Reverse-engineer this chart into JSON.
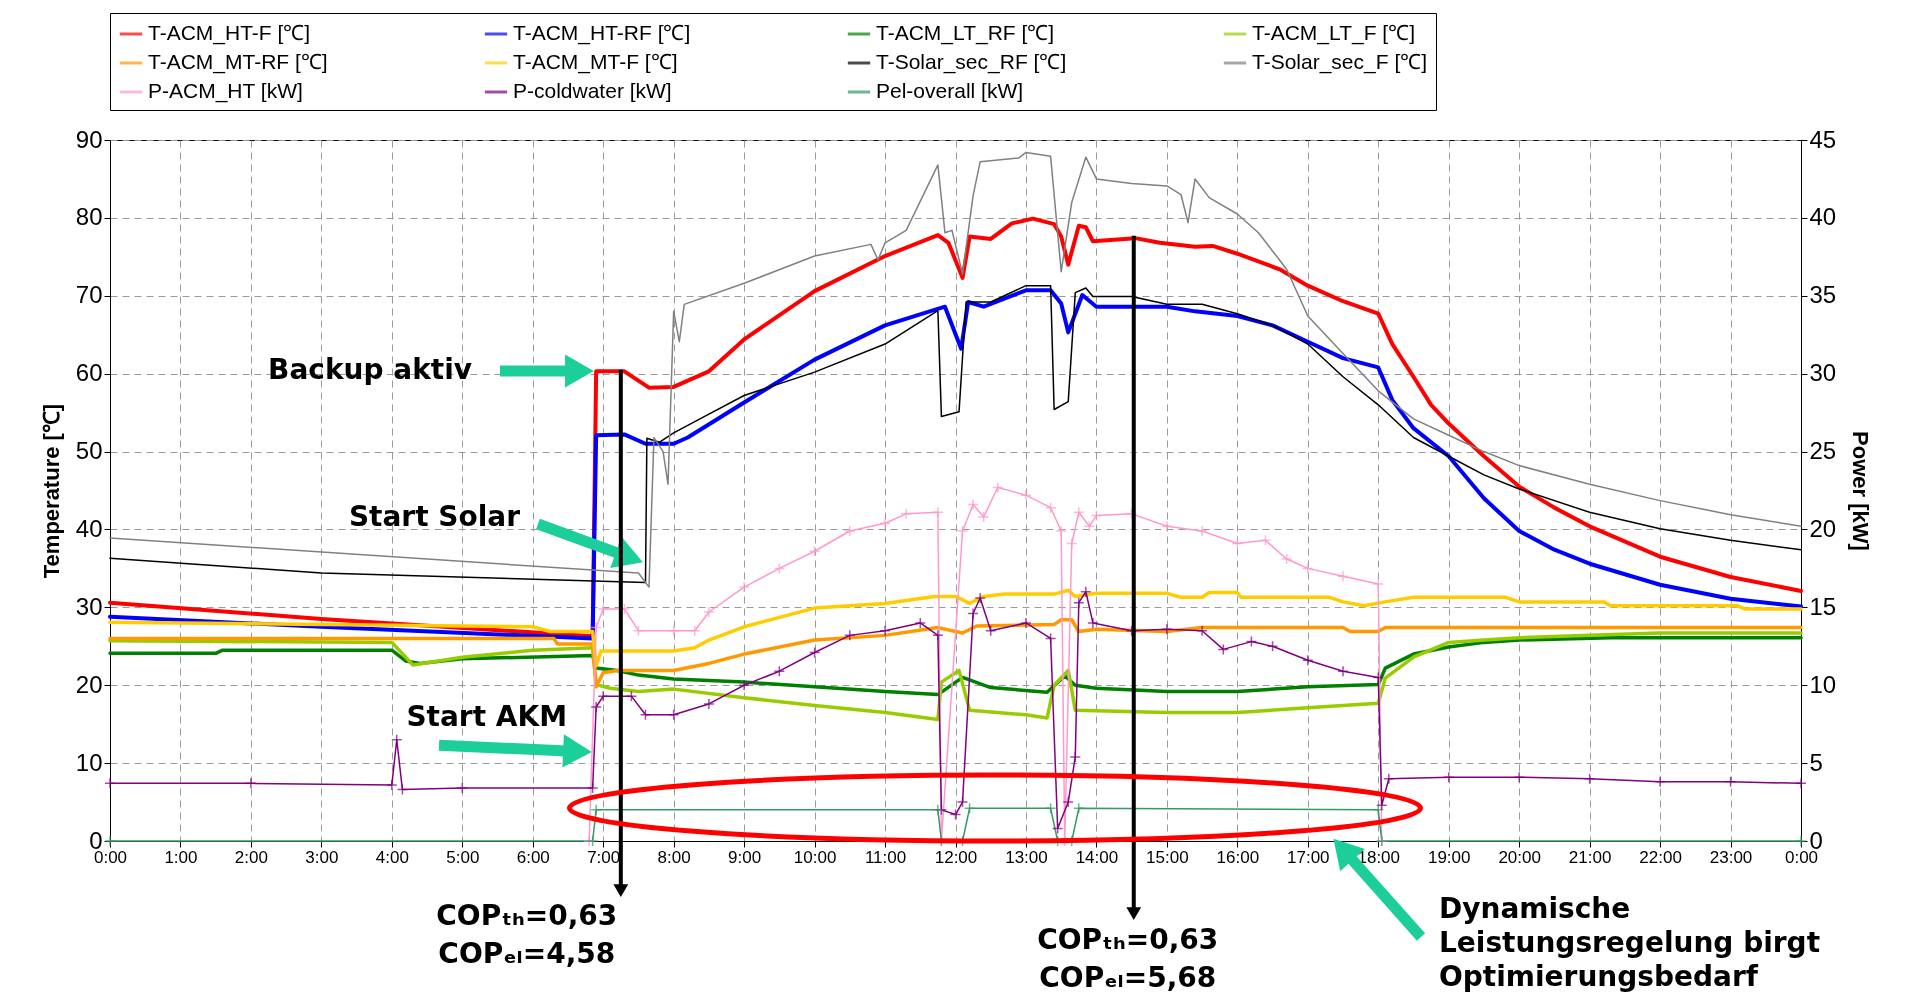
{
  "chart_data": {
    "type": "line",
    "ylabel": "Temperature [℃]",
    "y2label": "Power [kW]",
    "xlim": [
      0,
      24
    ],
    "xticks": [
      {
        "value": 0,
        "label": "0:00"
      },
      {
        "value": 1,
        "label": "1:00"
      },
      {
        "value": 2,
        "label": "2:00"
      },
      {
        "value": 3,
        "label": "3:00"
      },
      {
        "value": 4,
        "label": "4:00"
      },
      {
        "value": 5,
        "label": "5:00"
      },
      {
        "value": 6,
        "label": "6:00"
      },
      {
        "value": 7,
        "label": "7:00"
      },
      {
        "value": 8,
        "label": "8:00"
      },
      {
        "value": 9,
        "label": "9:00"
      },
      {
        "value": 10,
        "label": "10:00"
      },
      {
        "value": 11,
        "label": "11:00"
      },
      {
        "value": 12,
        "label": "12:00"
      },
      {
        "value": 13,
        "label": "13:00"
      },
      {
        "value": 14,
        "label": "14:00"
      },
      {
        "value": 15,
        "label": "15:00"
      },
      {
        "value": 16,
        "label": "16:00"
      },
      {
        "value": 17,
        "label": "17:00"
      },
      {
        "value": 18,
        "label": "18:00"
      },
      {
        "value": 19,
        "label": "19:00"
      },
      {
        "value": 20,
        "label": "20:00"
      },
      {
        "value": 21,
        "label": "21:00"
      },
      {
        "value": 22,
        "label": "22:00"
      },
      {
        "value": 23,
        "label": "23:00"
      },
      {
        "value": 24,
        "label": "0:00"
      }
    ],
    "ylim": [
      0,
      90
    ],
    "yticks": [
      0,
      10,
      20,
      30,
      40,
      50,
      60,
      70,
      80,
      90
    ],
    "y2lim": [
      0,
      45
    ],
    "y2ticks": [
      0,
      5,
      10,
      15,
      20,
      25,
      30,
      35,
      40,
      45
    ],
    "grid": true,
    "legend": "top",
    "series": [
      {
        "name": "T-ACM_HT-F [℃]",
        "color": "#ff0000",
        "x": [
          0,
          3,
          6.85,
          6.9,
          7.3,
          7.65,
          8,
          8.5,
          9,
          10,
          11,
          11.75,
          11.9,
          12.1,
          12.2,
          12.5,
          12.8,
          13.1,
          13.4,
          13.5,
          13.6,
          13.75,
          13.85,
          13.95,
          14.55,
          14.9,
          15.4,
          15.65,
          16,
          16.6,
          17,
          17.5,
          18,
          18.2,
          18.5,
          18.75,
          19,
          19.5,
          20,
          20.5,
          21,
          22,
          23,
          24
        ],
        "values": [
          30.6,
          28.5,
          26.3,
          60.3,
          60.3,
          58.2,
          58.3,
          60.3,
          64.4,
          70.6,
          75.1,
          77.8,
          76.8,
          72.3,
          77.6,
          77.3,
          79.3,
          79.9,
          79.2,
          77.6,
          74.0,
          79.0,
          78.8,
          77.0,
          77.4,
          76.8,
          76.3,
          76.4,
          75.4,
          73.4,
          71.3,
          69.3,
          67.7,
          63.8,
          59.6,
          56.0,
          53.6,
          49.4,
          45.5,
          42.8,
          40.4,
          36.5,
          33.9,
          32.1
        ]
      },
      {
        "name": "T-ACM_HT-RF [℃]",
        "color": "#0000ff",
        "x": [
          0,
          3,
          6.85,
          6.9,
          7.3,
          7.6,
          8,
          8.2,
          9,
          10,
          11,
          11.85,
          12.08,
          12.18,
          12.4,
          13,
          13.35,
          13.5,
          13.6,
          13.8,
          14,
          15,
          15.4,
          16,
          16.5,
          17,
          17.5,
          18,
          18.2,
          18.5,
          19,
          19.5,
          20,
          20.5,
          21,
          22,
          23,
          24
        ],
        "values": [
          28.8,
          27.5,
          26.0,
          52.1,
          52.2,
          51.0,
          51.0,
          51.8,
          56.3,
          61.8,
          66.2,
          68.6,
          63.2,
          69.2,
          68.6,
          70.7,
          70.7,
          69.0,
          65.3,
          70.1,
          68.6,
          68.6,
          68.0,
          67.4,
          66.2,
          64.1,
          62.0,
          60.8,
          56.6,
          53.0,
          49.4,
          44.0,
          39.8,
          37.4,
          35.6,
          32.9,
          31.1,
          30.1
        ]
      },
      {
        "name": "T-ACM_LT_RF [℃]",
        "color": "#008000",
        "x": [
          0,
          1.5,
          1.6,
          4.0,
          4.2,
          4.4,
          5,
          6.85,
          6.9,
          7.2,
          7.5,
          8,
          9,
          10,
          11,
          11.75,
          12.1,
          12.5,
          13.3,
          13.55,
          13.7,
          14,
          15,
          16,
          17,
          18,
          18.1,
          18.5,
          19,
          19.5,
          20,
          21.3,
          24
        ],
        "values": [
          24.1,
          24.1,
          24.5,
          24.5,
          23.1,
          22.8,
          23.4,
          23.8,
          22.2,
          21.9,
          21.3,
          20.8,
          20.4,
          19.8,
          19.2,
          18.8,
          21.0,
          19.7,
          19.1,
          21.2,
          20.0,
          19.6,
          19.2,
          19.2,
          19.8,
          20.1,
          22.2,
          24.0,
          24.9,
          25.5,
          25.8,
          26.1,
          26.1
        ]
      },
      {
        "name": "T-ACM_LT_F [℃]",
        "color": "#99cc00",
        "x": [
          0,
          4.0,
          4.3,
          5,
          6,
          6.85,
          6.9,
          7.1,
          7.5,
          8,
          9,
          10,
          11,
          11.75,
          11.8,
          12.05,
          12.2,
          13,
          13.3,
          13.4,
          13.6,
          13.7,
          15,
          16,
          17,
          18,
          18.1,
          18.5,
          19,
          19.5,
          20,
          21,
          22,
          24
        ],
        "values": [
          25.7,
          25.5,
          22.6,
          23.6,
          24.5,
          24.8,
          20.1,
          19.6,
          19.2,
          19.5,
          18.4,
          17.4,
          16.5,
          15.6,
          20.4,
          21.9,
          16.8,
          16.2,
          15.8,
          20.0,
          21.9,
          16.8,
          16.5,
          16.5,
          17.1,
          17.7,
          20.9,
          23.6,
          25.5,
          25.8,
          26.1,
          26.4,
          26.7,
          26.7
        ]
      },
      {
        "name": "T-ACM_MT-RF [℃]",
        "color": "#ff9900",
        "x": [
          0,
          6.3,
          6.35,
          6.85,
          6.9,
          7.0,
          7.2,
          8,
          8.5,
          9,
          10,
          11,
          11.75,
          12.1,
          12.3,
          13.4,
          13.5,
          13.65,
          13.75,
          14,
          15,
          15.5,
          17.5,
          17.6,
          18,
          18.1,
          24
        ],
        "values": [
          26.0,
          26.0,
          25.3,
          25.3,
          19.8,
          21.6,
          21.9,
          21.9,
          22.8,
          24.0,
          25.8,
          26.4,
          27.4,
          26.7,
          27.6,
          27.8,
          28.4,
          28.4,
          26.9,
          27.2,
          26.9,
          27.4,
          27.4,
          26.9,
          26.9,
          27.4,
          27.4
        ]
      },
      {
        "name": "T-ACM_MT-F [℃]",
        "color": "#ffcc00",
        "x": [
          0,
          6,
          6.25,
          6.85,
          6.9,
          6.97,
          8,
          8.3,
          8.5,
          9,
          10,
          11,
          11.7,
          12,
          12.2,
          12.4,
          12.7,
          13.4,
          13.6,
          13.7,
          14,
          15,
          15.2,
          15.5,
          15.6,
          16,
          16.05,
          17.3,
          17.5,
          17.8,
          18.1,
          18.5,
          19.8,
          20,
          21.2,
          21.3,
          23.1,
          23.2,
          24
        ],
        "values": [
          28.1,
          27.5,
          26.9,
          26.9,
          22.5,
          24.4,
          24.4,
          24.8,
          25.8,
          27.5,
          29.9,
          30.5,
          31.4,
          31.4,
          30.5,
          31.4,
          31.7,
          31.7,
          32.2,
          31.4,
          31.8,
          31.8,
          31.3,
          31.3,
          31.9,
          31.9,
          31.3,
          31.3,
          30.7,
          30.2,
          30.7,
          31.3,
          31.3,
          30.7,
          30.7,
          30.2,
          30.2,
          29.8,
          29.8
        ]
      },
      {
        "name": "T-Solar_sec_RF [℃]",
        "color": "#000000",
        "x": [
          0,
          3,
          7.6,
          7.62,
          7.8,
          8,
          8.5,
          9,
          10,
          11,
          11.75,
          11.8,
          12.05,
          12.15,
          12.5,
          13,
          13.35,
          13.4,
          13.6,
          13.7,
          13.85,
          13.95,
          14.5,
          15,
          15.5,
          16,
          16.5,
          17,
          17.5,
          18,
          18.5,
          19,
          19.5,
          20,
          21,
          22,
          23,
          24
        ],
        "values": [
          36.3,
          34.4,
          33.2,
          51.7,
          51.2,
          52.4,
          54.8,
          57.2,
          60.2,
          63.8,
          68.1,
          54.5,
          55.1,
          69.2,
          69.2,
          71.3,
          71.3,
          55.4,
          56.4,
          70.4,
          71.0,
          69.9,
          69.9,
          68.9,
          68.9,
          67.7,
          66.2,
          63.8,
          59.6,
          56.0,
          51.8,
          49.4,
          47.0,
          45.2,
          42.2,
          40.1,
          38.6,
          37.4
        ]
      },
      {
        "name": "T-Solar_sec_F [℃]",
        "color": "#808080",
        "x": [
          0,
          7.5,
          7.65,
          7.72,
          7.85,
          7.92,
          8,
          8.08,
          8.15,
          9,
          10,
          10.8,
          10.9,
          11,
          11.3,
          11.75,
          11.85,
          11.95,
          12.1,
          12.25,
          12.35,
          12.9,
          13,
          13.35,
          13.5,
          13.65,
          13.85,
          14,
          14.5,
          15,
          15.2,
          15.3,
          15.4,
          15.6,
          16,
          16.3,
          16.7,
          17,
          17.5,
          18,
          18.5,
          19,
          19.5,
          20,
          21,
          22,
          23,
          24
        ],
        "values": [
          38.9,
          34.4,
          32.6,
          51.8,
          50.0,
          45.8,
          68.0,
          64.1,
          68.9,
          71.6,
          75.1,
          76.6,
          74.6,
          76.8,
          78.4,
          86.8,
          78.1,
          78.4,
          72.8,
          82.9,
          87.2,
          87.7,
          88.4,
          87.9,
          73.1,
          82.0,
          87.8,
          85.0,
          84.4,
          84.1,
          83.0,
          79.4,
          85.0,
          82.6,
          80.5,
          78.1,
          73.4,
          67.4,
          62.6,
          57.8,
          54.2,
          52.1,
          50.0,
          48.2,
          45.8,
          43.7,
          41.9,
          40.4
        ]
      },
      {
        "name": "P-ACM_HT [kW]",
        "color": "#ff99cc",
        "axis": "y2",
        "marker": "cross",
        "x": [
          6.8,
          6.9,
          7.0,
          7.3,
          7.5,
          8,
          8.3,
          8.5,
          9,
          9.5,
          10,
          10.5,
          11,
          11.3,
          11.75,
          11.8,
          12.1,
          12.25,
          12.4,
          12.6,
          13,
          13.35,
          13.5,
          13.55,
          13.65,
          13.75,
          13.9,
          14,
          14.5,
          15,
          15.5,
          16,
          16.4,
          16.7,
          17,
          17.5,
          18,
          18.05
        ],
        "values": [
          0,
          13.7,
          14.9,
          14.9,
          13.5,
          13.5,
          13.5,
          14.7,
          16.3,
          17.5,
          18.6,
          19.9,
          20.4,
          21.0,
          21.1,
          0,
          19.9,
          21.6,
          20.8,
          22.7,
          22.2,
          21.4,
          19.9,
          0,
          19.1,
          21.1,
          20.2,
          20.9,
          21.0,
          20.2,
          19.9,
          19.1,
          19.3,
          18.1,
          17.5,
          17.0,
          16.5,
          0
        ]
      },
      {
        "name": "P-coldwater [kW]",
        "color": "#800080",
        "axis": "y2",
        "marker": "cross",
        "x": [
          0,
          2,
          4.0,
          4.07,
          4.15,
          5,
          6.85,
          6.9,
          7.0,
          7.4,
          7.6,
          8,
          8.5,
          9,
          9.5,
          10,
          10.5,
          11,
          11.5,
          11.75,
          11.8,
          12.0,
          12.1,
          12.25,
          12.35,
          12.5,
          13,
          13.35,
          13.45,
          13.6,
          13.7,
          13.75,
          13.85,
          13.95,
          14.5,
          15,
          15.5,
          15.8,
          16.2,
          16.5,
          17,
          17.5,
          18,
          18.05,
          18.15,
          19,
          20,
          21,
          22,
          23,
          24
        ],
        "values": [
          3.7,
          3.7,
          3.6,
          6.5,
          3.3,
          3.4,
          3.4,
          8.6,
          9.3,
          9.3,
          8.1,
          8.1,
          8.8,
          10.0,
          10.9,
          12.1,
          13.2,
          13.5,
          14.0,
          13.2,
          2.0,
          1.7,
          2.5,
          14.6,
          15.6,
          13.5,
          14.0,
          13.0,
          0.8,
          2.5,
          5.4,
          15.3,
          16.0,
          14.0,
          13.5,
          13.6,
          13.5,
          12.3,
          12.8,
          12.5,
          11.6,
          10.9,
          10.5,
          2.3,
          4.0,
          4.1,
          4.1,
          4.0,
          3.8,
          3.8,
          3.7
        ]
      },
      {
        "name": "Pel-overall [kW]",
        "color": "#339966",
        "axis": "y2",
        "marker": "cross",
        "x": [
          0,
          6.85,
          6.9,
          11.75,
          11.8,
          12.1,
          12.2,
          13.35,
          13.45,
          13.65,
          13.75,
          18.0,
          18.05,
          24
        ],
        "values": [
          0,
          0,
          2.0,
          2.0,
          0,
          0,
          2.1,
          2.1,
          0,
          0,
          2.1,
          2.0,
          0,
          0
        ]
      }
    ],
    "annotations": [
      "Backup aktiv",
      "Start Solar",
      {
        "text": "Start AKM",
        "x": 6.87,
        "y": 11.4
      },
      {
        "text": "COPₜₕ=0,63\nCOPₑₗ=4,58",
        "x": 7.25,
        "y": 60.5
      },
      {
        "text": "COPₜₕ=0,63\nCOPₑₗ=5,68",
        "x": 14.53,
        "y": 77.7
      },
      "Dynamische\nLeistungsregelung birgt\nOptimierungsbedarf"
    ]
  }
}
